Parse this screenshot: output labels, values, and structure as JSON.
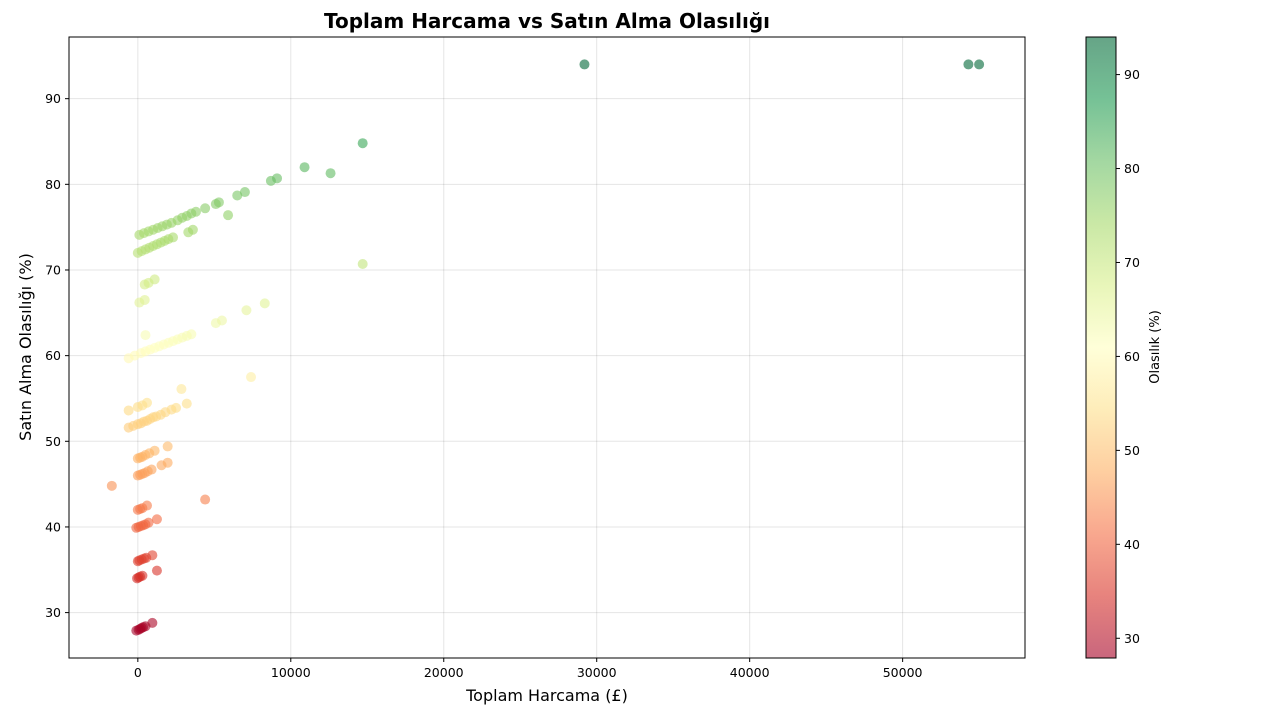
{
  "chart_data": {
    "type": "scatter",
    "title": "Toplam Harcama vs Satın Alma Olasılığı",
    "xlabel": "Toplam Harcama (£)",
    "ylabel": "Satın Alma Olasılığı (%)",
    "xlim": [
      -4500,
      58000
    ],
    "ylim": [
      24.7,
      97.2
    ],
    "xticks": [
      0,
      10000,
      20000,
      30000,
      40000,
      50000
    ],
    "yticks": [
      30,
      40,
      50,
      60,
      70,
      80,
      90
    ],
    "grid": true,
    "colormap": "RdYlGn",
    "colorbar": {
      "label": "Olasılık (%)",
      "range": [
        27.9,
        94.0
      ],
      "ticks": [
        30,
        40,
        50,
        60,
        70,
        80,
        90
      ]
    },
    "points": [
      [
        -100,
        27.9
      ],
      [
        50,
        28.0
      ],
      [
        150,
        28.1
      ],
      [
        250,
        28.2
      ],
      [
        350,
        28.3
      ],
      [
        500,
        28.4
      ],
      [
        950,
        28.8
      ],
      [
        -50,
        34.0
      ],
      [
        50,
        34.1
      ],
      [
        150,
        34.2
      ],
      [
        300,
        34.3
      ],
      [
        1250,
        34.9
      ],
      [
        0,
        36.0
      ],
      [
        100,
        36.1
      ],
      [
        250,
        36.2
      ],
      [
        400,
        36.3
      ],
      [
        550,
        36.4
      ],
      [
        950,
        36.7
      ],
      [
        -100,
        39.9
      ],
      [
        50,
        40.0
      ],
      [
        200,
        40.1
      ],
      [
        350,
        40.2
      ],
      [
        500,
        40.3
      ],
      [
        700,
        40.5
      ],
      [
        1250,
        40.9
      ],
      [
        0,
        42.0
      ],
      [
        150,
        42.1
      ],
      [
        300,
        42.2
      ],
      [
        600,
        42.5
      ],
      [
        4400,
        43.2
      ],
      [
        -1700,
        44.8
      ],
      [
        0,
        46.0
      ],
      [
        150,
        46.1
      ],
      [
        300,
        46.2
      ],
      [
        450,
        46.3
      ],
      [
        650,
        46.5
      ],
      [
        900,
        46.7
      ],
      [
        1550,
        47.2
      ],
      [
        1950,
        47.5
      ],
      [
        0,
        48.0
      ],
      [
        150,
        48.1
      ],
      [
        300,
        48.2
      ],
      [
        500,
        48.4
      ],
      [
        750,
        48.6
      ],
      [
        1100,
        48.9
      ],
      [
        1950,
        49.4
      ],
      [
        -600,
        51.6
      ],
      [
        -300,
        51.8
      ],
      [
        0,
        52.0
      ],
      [
        200,
        52.1
      ],
      [
        400,
        52.3
      ],
      [
        600,
        52.4
      ],
      [
        800,
        52.6
      ],
      [
        1000,
        52.8
      ],
      [
        1200,
        52.9
      ],
      [
        1500,
        53.1
      ],
      [
        1800,
        53.4
      ],
      [
        2200,
        53.7
      ],
      [
        2500,
        53.9
      ],
      [
        -600,
        53.6
      ],
      [
        0,
        54.0
      ],
      [
        300,
        54.2
      ],
      [
        600,
        54.5
      ],
      [
        3200,
        54.4
      ],
      [
        2850,
        56.1
      ],
      [
        7400,
        57.5
      ],
      [
        -600,
        59.7
      ],
      [
        -200,
        60.0
      ],
      [
        200,
        60.3
      ],
      [
        500,
        60.5
      ],
      [
        800,
        60.7
      ],
      [
        1100,
        60.9
      ],
      [
        1400,
        61.1
      ],
      [
        1700,
        61.3
      ],
      [
        2000,
        61.5
      ],
      [
        2300,
        61.7
      ],
      [
        2600,
        61.9
      ],
      [
        2900,
        62.1
      ],
      [
        3200,
        62.3
      ],
      [
        3500,
        62.5
      ],
      [
        500,
        62.4
      ],
      [
        5100,
        63.8
      ],
      [
        5500,
        64.1
      ],
      [
        7100,
        65.3
      ],
      [
        8300,
        66.1
      ],
      [
        100,
        66.2
      ],
      [
        450,
        66.5
      ],
      [
        450,
        68.3
      ],
      [
        700,
        68.5
      ],
      [
        1100,
        68.9
      ],
      [
        14700,
        70.7
      ],
      [
        0,
        72.0
      ],
      [
        250,
        72.2
      ],
      [
        500,
        72.4
      ],
      [
        750,
        72.6
      ],
      [
        1000,
        72.8
      ],
      [
        1250,
        73.0
      ],
      [
        1500,
        73.2
      ],
      [
        1750,
        73.4
      ],
      [
        2000,
        73.6
      ],
      [
        2300,
        73.8
      ],
      [
        100,
        74.1
      ],
      [
        400,
        74.3
      ],
      [
        700,
        74.5
      ],
      [
        1000,
        74.7
      ],
      [
        1300,
        74.9
      ],
      [
        1600,
        75.1
      ],
      [
        1900,
        75.3
      ],
      [
        2200,
        75.5
      ],
      [
        2600,
        75.8
      ],
      [
        2900,
        76.1
      ],
      [
        3200,
        76.3
      ],
      [
        3500,
        76.6
      ],
      [
        3800,
        76.8
      ],
      [
        4400,
        77.2
      ],
      [
        5100,
        77.7
      ],
      [
        5300,
        77.9
      ],
      [
        3300,
        74.4
      ],
      [
        3600,
        74.7
      ],
      [
        5900,
        76.4
      ],
      [
        6500,
        78.7
      ],
      [
        7000,
        79.1
      ],
      [
        8700,
        80.4
      ],
      [
        9100,
        80.7
      ],
      [
        10900,
        82.0
      ],
      [
        12600,
        81.3
      ],
      [
        14700,
        84.8
      ],
      [
        29200,
        94.0
      ],
      [
        54300,
        94.0
      ],
      [
        55000,
        94.0
      ]
    ]
  }
}
